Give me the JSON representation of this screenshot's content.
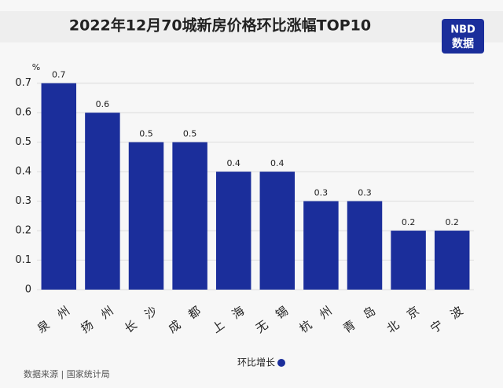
{
  "chart_data": {
    "type": "bar",
    "title": "2022年12月70城新房价格环比涨幅TOP10",
    "y_unit": "%",
    "categories": [
      "泉州",
      "扬州",
      "长沙",
      "成都",
      "上海",
      "无锡",
      "杭州",
      "青岛",
      "北京",
      "宁波"
    ],
    "series": [
      {
        "name": "环比增长",
        "color": "#1b2e9b",
        "values": [
          0.7,
          0.6,
          0.5,
          0.5,
          0.4,
          0.4,
          0.3,
          0.3,
          0.2,
          0.2
        ]
      }
    ],
    "ylim": [
      0,
      0.75
    ],
    "yticks": [
      0,
      0.1,
      0.2,
      0.3,
      0.4,
      0.5,
      0.6,
      0.7
    ],
    "grid": true,
    "legend": "bottom",
    "source": "数据来源 | 国家统计局"
  },
  "logo": {
    "top": "NBD",
    "bottom": "数据"
  }
}
